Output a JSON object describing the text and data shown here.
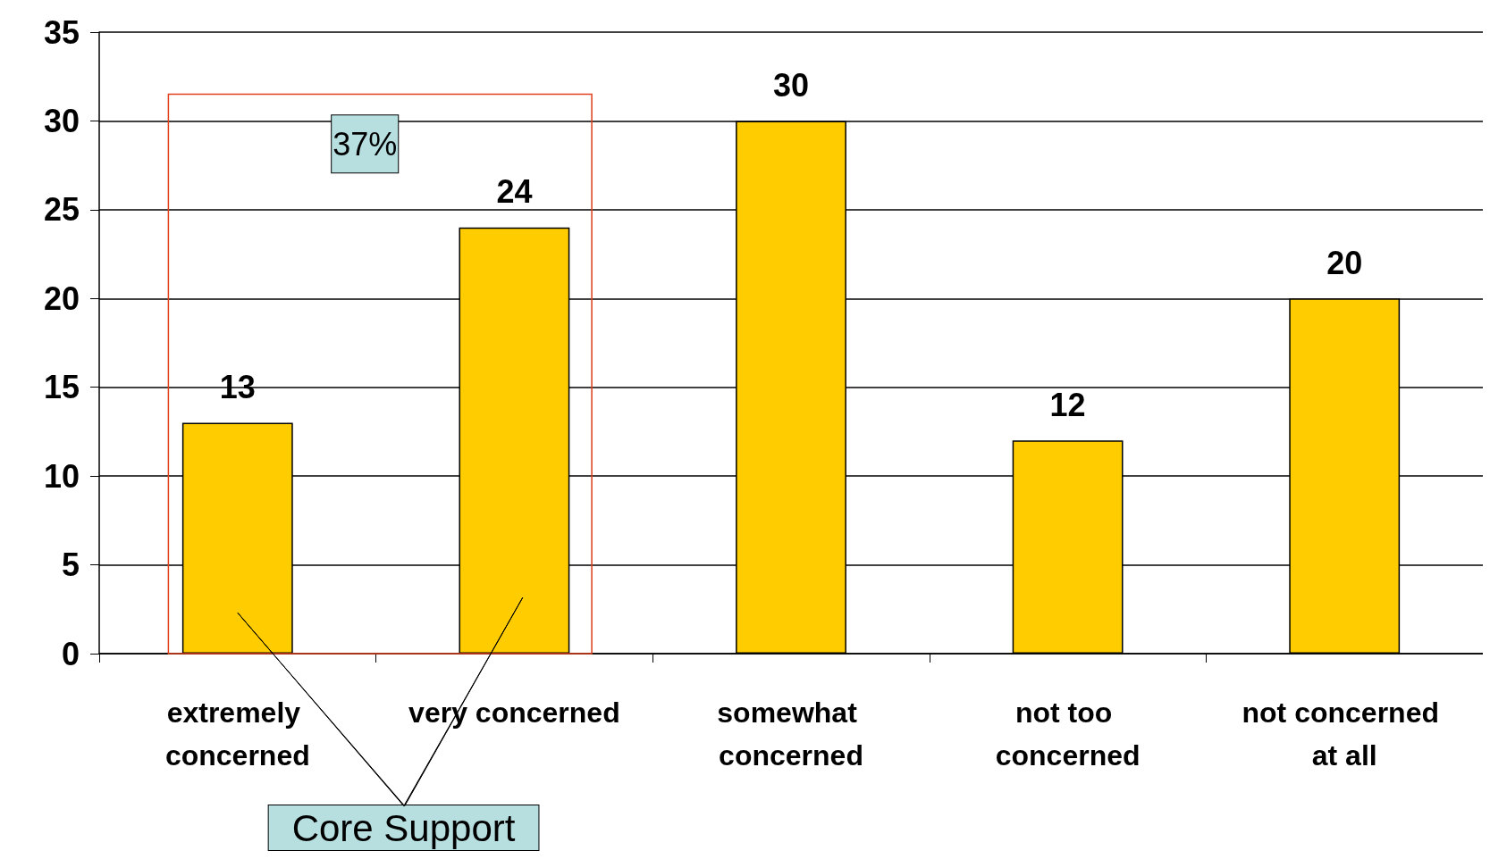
{
  "chart_data": {
    "type": "bar",
    "categories": [
      "extremely concerned",
      "very concerned",
      "somewhat concerned",
      "not too concerned",
      "not concerned at all"
    ],
    "values": [
      13,
      24,
      30,
      12,
      20
    ],
    "color": "#ffcc00",
    "ylim": [
      0,
      35
    ],
    "yticks": [
      0,
      5,
      10,
      15,
      20,
      25,
      30,
      35
    ],
    "grid": "y",
    "data_labels": true,
    "annotations": [
      "37%",
      "Core Support"
    ]
  }
}
